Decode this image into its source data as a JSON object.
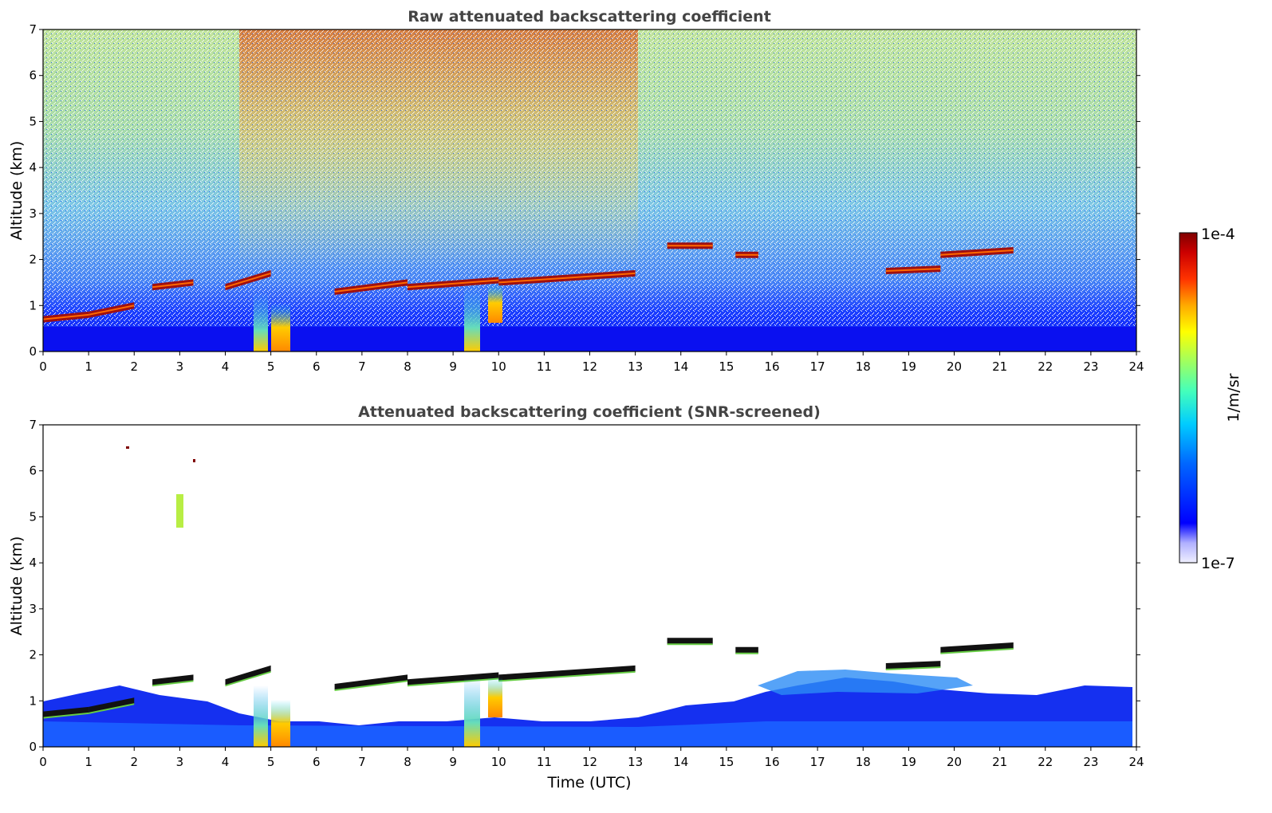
{
  "figure": {
    "colorbar": {
      "max_label": "1e-4",
      "min_label": "1e-7",
      "unit_label": "1/m/sr",
      "scale": "log",
      "colormap": [
        "#f0f0ff",
        "#b0b0ff",
        "#0000ff",
        "#0066ff",
        "#00ccff",
        "#44ffbb",
        "#aaff55",
        "#ffff00",
        "#ffaa00",
        "#ff3300",
        "#cc0000",
        "#7f0000"
      ]
    }
  },
  "chart_data": [
    {
      "type": "heatmap",
      "title": "Raw attenuated backscattering coefficient",
      "xlabel": "",
      "ylabel": "Altitude (km)",
      "xlim": [
        0,
        24
      ],
      "ylim": [
        0,
        7
      ],
      "x_ticks": [
        "0",
        "1",
        "2",
        "3",
        "4",
        "5",
        "6",
        "7",
        "8",
        "9",
        "10",
        "11",
        "12",
        "13",
        "14",
        "15",
        "16",
        "17",
        "18",
        "19",
        "20",
        "21",
        "22",
        "23",
        "24"
      ],
      "y_ticks": [
        "0",
        "1",
        "2",
        "3",
        "4",
        "5",
        "6",
        "7"
      ],
      "features": {
        "boundary_layer_top_km": 0.5,
        "cloud_layers": [
          {
            "t": [
              0.0,
              1.0
            ],
            "alt": [
              0.7,
              0.8
            ]
          },
          {
            "t": [
              1.0,
              2.0
            ],
            "alt": [
              0.8,
              1.0
            ]
          },
          {
            "t": [
              2.4,
              3.3
            ],
            "alt": [
              1.4,
              1.5
            ]
          },
          {
            "t": [
              4.0,
              5.0
            ],
            "alt": [
              1.4,
              1.7
            ]
          },
          {
            "t": [
              6.4,
              8.0
            ],
            "alt": [
              1.3,
              1.5
            ]
          },
          {
            "t": [
              8.0,
              10.0
            ],
            "alt": [
              1.4,
              1.55
            ]
          },
          {
            "t": [
              10.0,
              13.0
            ],
            "alt": [
              1.5,
              1.7
            ]
          },
          {
            "t": [
              13.7,
              14.7
            ],
            "alt": [
              2.3,
              2.3
            ]
          },
          {
            "t": [
              15.2,
              15.7
            ],
            "alt": [
              2.1,
              2.1
            ]
          },
          {
            "t": [
              18.5,
              19.7
            ],
            "alt": [
              1.75,
              1.8
            ]
          },
          {
            "t": [
              19.7,
              21.3
            ],
            "alt": [
              2.1,
              2.2
            ]
          }
        ]
      }
    },
    {
      "type": "heatmap",
      "title": "Attenuated backscattering coefficient (SNR-screened)",
      "xlabel": "Time (UTC)",
      "ylabel": "Altitude (km)",
      "xlim": [
        0,
        24
      ],
      "ylim": [
        0,
        7
      ],
      "x_ticks": [
        "0",
        "1",
        "2",
        "3",
        "4",
        "5",
        "6",
        "7",
        "8",
        "9",
        "10",
        "11",
        "12",
        "13",
        "14",
        "15",
        "16",
        "17",
        "18",
        "19",
        "20",
        "21",
        "22",
        "23",
        "24"
      ],
      "y_ticks": [
        "0",
        "1",
        "2",
        "3",
        "4",
        "5",
        "6",
        "7"
      ],
      "features": {
        "screened_noise": true,
        "boundary_layer_top_km": 0.5
      }
    }
  ]
}
